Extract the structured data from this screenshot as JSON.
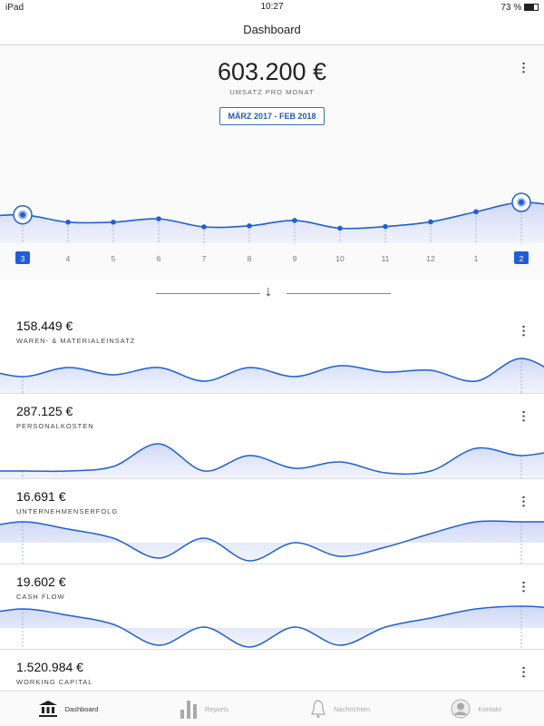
{
  "status": {
    "device": "iPad",
    "time": "10:27",
    "battery": "73 %"
  },
  "nav": {
    "title": "Dashboard"
  },
  "hero": {
    "amount": "603.200 €",
    "label": "UMSATZ PRO MONAT",
    "range": "MÄRZ 2017 - FEB 2018"
  },
  "chart_data": {
    "type": "area",
    "x": [
      "3",
      "4",
      "5",
      "6",
      "7",
      "8",
      "9",
      "10",
      "11",
      "12",
      "1",
      "2"
    ],
    "values": [
      63,
      41,
      41,
      51,
      27,
      30,
      46,
      23,
      28,
      42,
      72,
      100
    ],
    "selected": [
      "3",
      "2"
    ],
    "accent": "#1f5fd6"
  },
  "cards": [
    {
      "amount": "158.449 €",
      "label": "WAREN- & MATERIALEINSATZ",
      "trend": [
        15,
        25,
        17,
        25,
        10,
        25,
        15,
        27,
        20,
        22,
        10,
        35
      ]
    },
    {
      "amount": "287.125 €",
      "label": "PERSONALKOSTEN",
      "trend": [
        5,
        5,
        10,
        35,
        5,
        22,
        8,
        15,
        3,
        5,
        30,
        22
      ]
    },
    {
      "amount": "16.691 €",
      "label": "UNTERNEHMENSERFOLG",
      "trend": [
        23,
        15,
        5,
        -17,
        5,
        -20,
        0,
        -15,
        -5,
        10,
        23,
        23
      ]
    },
    {
      "amount": "19.602 €",
      "label": "CASH FLOW",
      "trend": [
        21,
        14,
        4,
        -19,
        1,
        -21,
        1,
        -19,
        1,
        11,
        21,
        24
      ]
    },
    {
      "amount": "1.520.984 €",
      "label": "WORKING CAPITAL",
      "trend": []
    }
  ],
  "tabs": [
    {
      "label": "Dashboard",
      "icon": "bank-icon",
      "active": true
    },
    {
      "label": "Reports",
      "icon": "bar-chart-icon"
    },
    {
      "label": "Nachrichten",
      "icon": "bell-icon"
    },
    {
      "label": "Kontakt",
      "icon": "user-icon"
    }
  ]
}
